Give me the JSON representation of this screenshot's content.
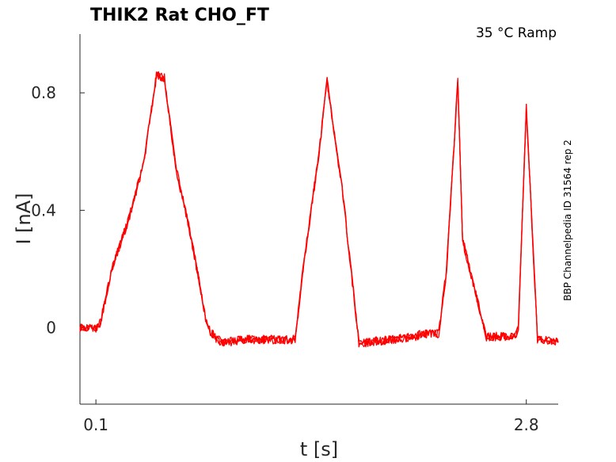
{
  "chart_data": {
    "type": "line",
    "title": "THIK2  Rat  CHO_FT",
    "annotation": "35 °C  Ramp",
    "side_label": "BBP Channelpedia ID 31564 rep 2",
    "xlabel": "t [s]",
    "ylabel": "I [nA]",
    "xlim": [
      0.0,
      3.0
    ],
    "ylim": [
      -0.26,
      1.0
    ],
    "x_ticks": [
      {
        "value": 0.1,
        "label": "0.1"
      },
      {
        "value": 2.8,
        "label": "2.8"
      }
    ],
    "y_ticks": [
      {
        "value": 0.8,
        "label": "0.8"
      },
      {
        "value": 0.4,
        "label": "0.4"
      },
      {
        "value": 0.0,
        "label": "0"
      }
    ],
    "grid": false,
    "line_color": "#ff0000",
    "series": [
      {
        "x": [
          0.0,
          0.05,
          0.1,
          0.13,
          0.2,
          0.3,
          0.4,
          0.48,
          0.53,
          0.6,
          0.7,
          0.8,
          0.86,
          0.9,
          1.05,
          1.2,
          1.35,
          1.4,
          1.5,
          1.55,
          1.65,
          1.75,
          1.8,
          1.95,
          2.1,
          2.15,
          2.25,
          2.3,
          2.37,
          2.4,
          2.55,
          2.6,
          2.63,
          2.68,
          2.73,
          2.75,
          2.8,
          2.87,
          2.9,
          3.0
        ],
        "y": [
          0.0,
          0.0,
          0.0,
          0.02,
          0.2,
          0.36,
          0.56,
          0.86,
          0.85,
          0.55,
          0.3,
          0.0,
          -0.04,
          -0.05,
          -0.04,
          -0.04,
          -0.04,
          0.2,
          0.6,
          0.84,
          0.45,
          -0.05,
          -0.05,
          -0.04,
          -0.03,
          -0.02,
          -0.02,
          0.2,
          0.84,
          0.3,
          -0.03,
          -0.03,
          -0.03,
          -0.03,
          -0.03,
          0.0,
          0.75,
          -0.04,
          -0.04,
          -0.05
        ]
      }
    ]
  }
}
